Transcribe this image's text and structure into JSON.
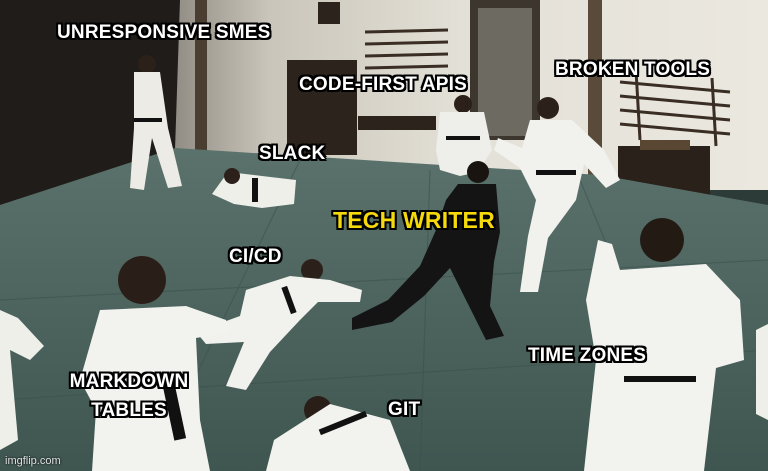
{
  "captions": {
    "unresponsive_smes": "UNRESPONSIVE SMES",
    "code_first_apis": "CODE-FIRST APIS",
    "broken_tools": "BROKEN TOOLS",
    "slack": "SLACK",
    "tech_writer": "TECH WRITER",
    "ci_cd": "CI/CD",
    "time_zones": "TIME ZONES",
    "markdown_tables_line1": "MARKDOWN",
    "markdown_tables_line2": "TABLES",
    "git": "GIT"
  },
  "watermark": "imgflip.com",
  "colors": {
    "tech_writer_text": "#f5d90a",
    "caption_text": "#ffffff",
    "caption_outline": "#000000",
    "mat": "#4e6660",
    "wall": "#dcd9cf",
    "gi": "#f1f1ee",
    "black_outfit": "#141414"
  }
}
